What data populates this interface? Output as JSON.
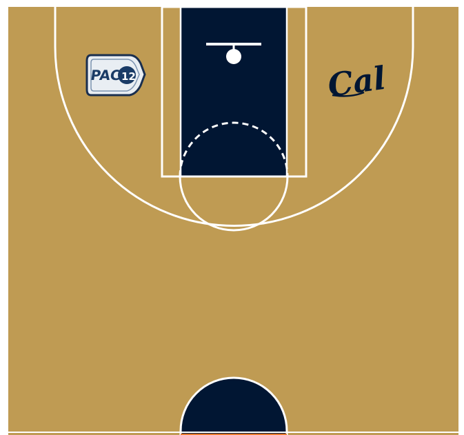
{
  "court": {
    "colors": {
      "floor": "#BF9B53",
      "paint": "#011633",
      "lines": "#FFFFFF",
      "baseline_accent": "#E8792B",
      "background": "#FFFFFF"
    },
    "logos": {
      "left": {
        "icon": "pac-12-shield-icon",
        "text": "PAC 12"
      },
      "right": {
        "icon": "cal-script-logo",
        "text": "Cal"
      }
    }
  }
}
